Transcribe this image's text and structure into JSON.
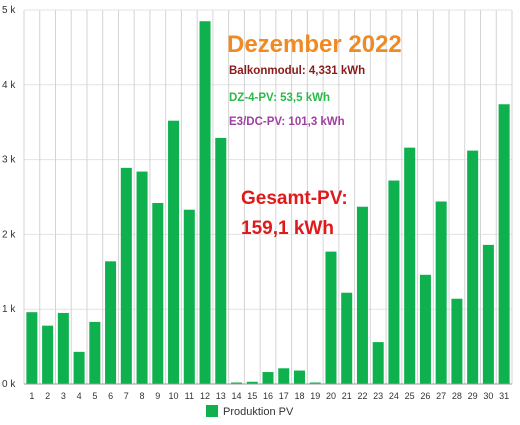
{
  "chart_data": {
    "type": "bar",
    "categories": [
      "1",
      "2",
      "3",
      "4",
      "5",
      "6",
      "7",
      "8",
      "9",
      "10",
      "11",
      "12",
      "13",
      "14",
      "15",
      "16",
      "17",
      "18",
      "19",
      "20",
      "21",
      "22",
      "23",
      "24",
      "25",
      "26",
      "27",
      "28",
      "29",
      "30",
      "31"
    ],
    "series": [
      {
        "name": "Produktion PV",
        "color": "#0fb14f",
        "values": [
          960,
          780,
          950,
          430,
          830,
          1640,
          2890,
          2840,
          2420,
          3520,
          2330,
          4850,
          3290,
          20,
          30,
          160,
          210,
          180,
          20,
          1770,
          1220,
          2370,
          560,
          2720,
          3160,
          1460,
          2440,
          1140,
          3120,
          1860,
          3740
        ]
      }
    ],
    "ylim": [
      0,
      5000
    ],
    "yticks": [
      0,
      1000,
      2000,
      3000,
      4000,
      5000
    ],
    "ytick_labels": [
      "0 k",
      "1 k",
      "2 k",
      "3 k",
      "4 k",
      "5 k"
    ],
    "grid": true,
    "legend": "bottom-center",
    "annotations": {
      "title": {
        "text": "Dezember 2022",
        "color": "#f08a24"
      },
      "balkon": {
        "text": "Balkonmodul: 4,331 kWh",
        "color": "#8b1a1a"
      },
      "dz4": {
        "text": "DZ-4-PV: 53,5 kWh",
        "color": "#2db84a"
      },
      "e3dc": {
        "text": "E3/DC-PV: 101,3 kWh",
        "color": "#a040a0"
      },
      "gesamt_label": {
        "text": "Gesamt-PV:",
        "color": "#e01a1a"
      },
      "gesamt_value": {
        "text": "159,1 kWh",
        "color": "#e01a1a"
      }
    }
  }
}
